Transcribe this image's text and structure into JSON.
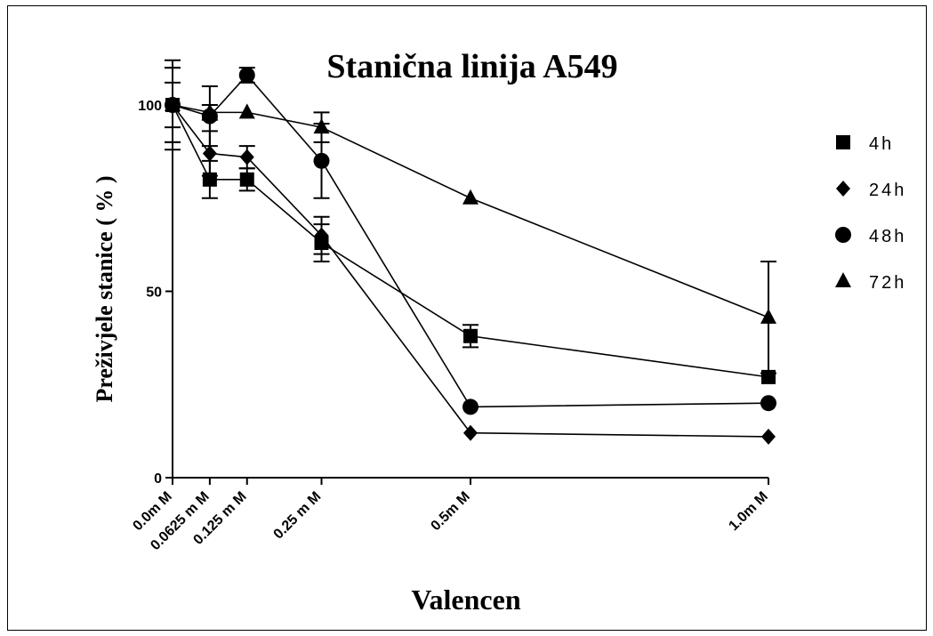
{
  "chart_data": {
    "type": "line",
    "title": "Stanična linija A549",
    "xlabel": "Valencen",
    "ylabel": "Preživjele stanice ( % )",
    "categories": [
      "0.0m M",
      "0.0625 m M",
      "0.125 m M",
      "0.25 m M",
      "0.5m M",
      "1.0m M"
    ],
    "x": [
      0,
      0.0625,
      0.125,
      0.25,
      0.5,
      1.0
    ],
    "yticks": [
      "0",
      "50",
      "100"
    ],
    "ytick_values": [
      0,
      50,
      100
    ],
    "ylim": [
      0,
      110
    ],
    "xlim": [
      0,
      1.0
    ],
    "grid": false,
    "legend_position": "right",
    "series": [
      {
        "name": "4h",
        "marker": "square",
        "values": [
          100,
          80,
          80,
          63,
          38,
          27
        ],
        "errors": [
          12,
          5,
          3,
          5,
          3,
          0
        ]
      },
      {
        "name": "24h",
        "marker": "diamond",
        "values": [
          100,
          87,
          86,
          65,
          12,
          11
        ],
        "errors": [
          10,
          6,
          3,
          5,
          0,
          0
        ]
      },
      {
        "name": "48h",
        "marker": "circle",
        "values": [
          100,
          97,
          108,
          85,
          19,
          20
        ],
        "errors": [
          10,
          8,
          2,
          10,
          0,
          0
        ]
      },
      {
        "name": "72h",
        "marker": "triangle",
        "values": [
          100,
          98,
          98,
          94,
          75,
          43
        ],
        "errors": [
          6,
          2,
          0,
          4,
          0,
          15
        ]
      }
    ]
  }
}
